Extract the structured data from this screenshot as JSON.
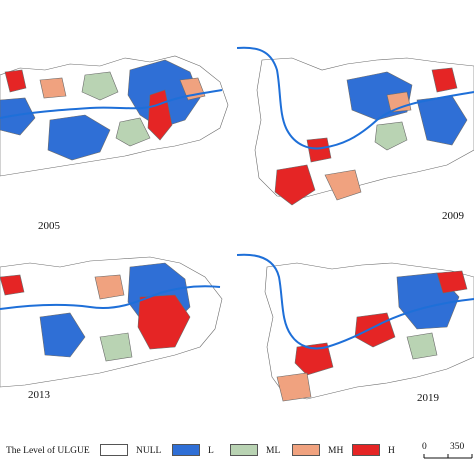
{
  "panels": [
    {
      "year": "2005"
    },
    {
      "year": "2009"
    },
    {
      "year": "2013"
    },
    {
      "year": "2019"
    }
  ],
  "legend": {
    "title": "The Level of ULGUE",
    "items": [
      {
        "label": "NULL",
        "color": "#ffffff"
      },
      {
        "label": "L",
        "color": "#2f6fd6"
      },
      {
        "label": "ML",
        "color": "#b9d3b3"
      },
      {
        "label": "MH",
        "color": "#f0a27f"
      },
      {
        "label": "H",
        "color": "#e52525"
      }
    ]
  },
  "scale_bar": {
    "start": "0",
    "end": "350"
  },
  "colors": {
    "river": "#1e6fd8",
    "boundary": "#6b6b6b"
  }
}
